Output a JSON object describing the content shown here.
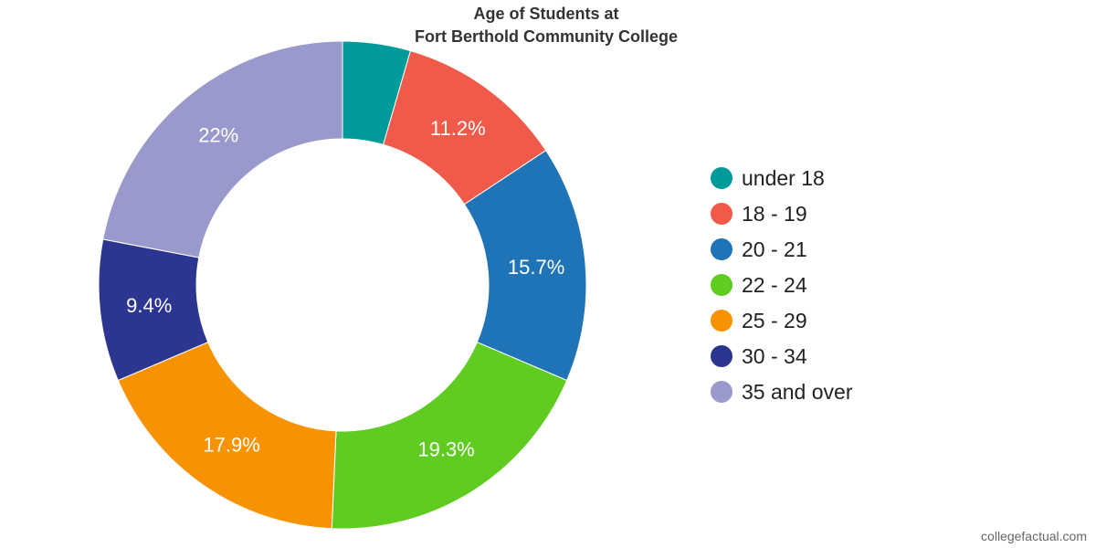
{
  "chart_data": {
    "type": "pie",
    "title": [
      "Age of Students at",
      "Fort Berthold Community College"
    ],
    "categories": [
      "under 18",
      "18 - 19",
      "20 - 21",
      "22 - 24",
      "25 - 29",
      "30 - 34",
      "35 and over"
    ],
    "values": [
      4.5,
      11.2,
      15.7,
      19.3,
      17.9,
      9.4,
      22
    ],
    "data_labels": [
      "",
      "11.2%",
      "15.7%",
      "19.3%",
      "17.9%",
      "9.4%",
      "22%"
    ],
    "colors": [
      "#009a9a",
      "#f05a4a",
      "#1f73b7",
      "#60cc22",
      "#f79300",
      "#2c3690",
      "#9999cc"
    ],
    "donut": true,
    "legend_position": "right"
  },
  "footer": {
    "credit": "collegefactual.com"
  }
}
